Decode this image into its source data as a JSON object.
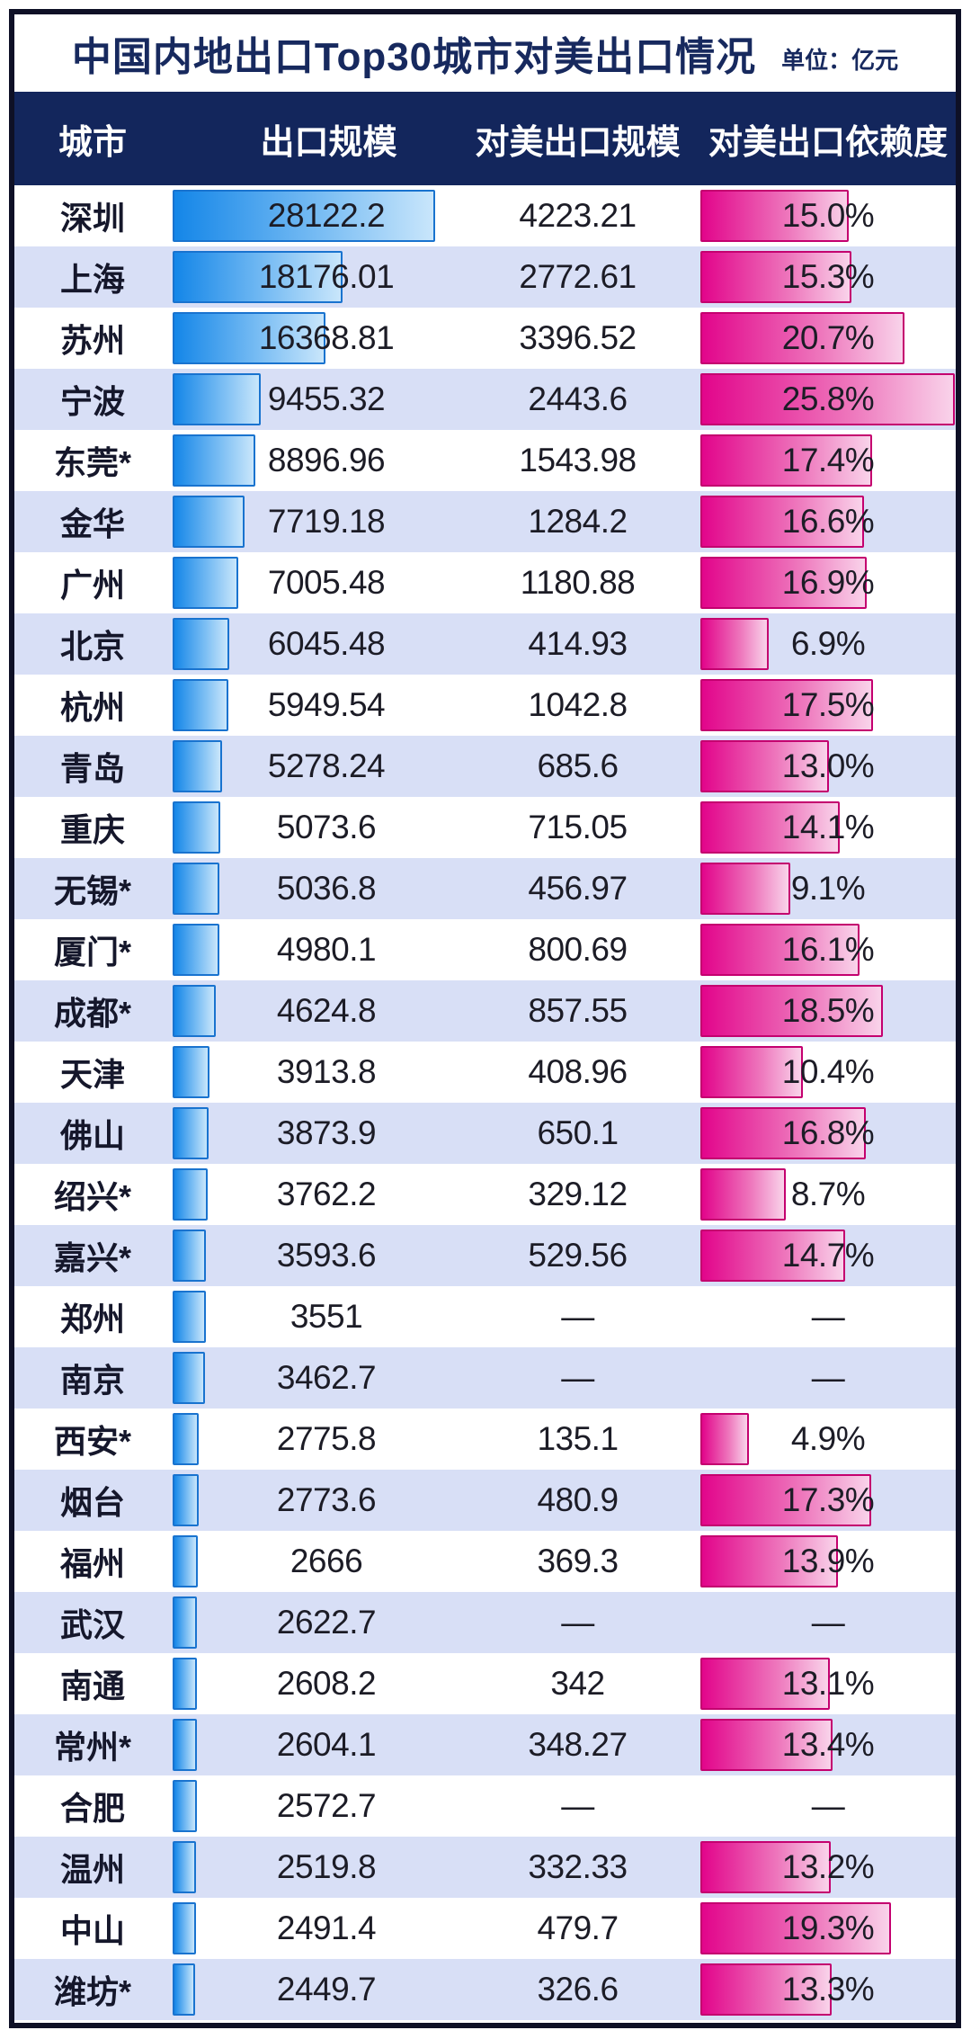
{
  "title": {
    "text": "中国内地出口Top30城市对美出口情况",
    "unit": "单位：亿元"
  },
  "table": {
    "headers": [
      "城市",
      "出口规模",
      "对美出口规模",
      "对美出口依赖度"
    ],
    "na_symbol": "—",
    "rows": [
      {
        "city": "深圳",
        "export": "28122.2",
        "export_value": 28122.2,
        "us_export": "4223.21",
        "dependency": "15.0%",
        "dependency_value": 15.0
      },
      {
        "city": "上海",
        "export": "18176.01",
        "export_value": 18176.01,
        "us_export": "2772.61",
        "dependency": "15.3%",
        "dependency_value": 15.3
      },
      {
        "city": "苏州",
        "export": "16368.81",
        "export_value": 16368.81,
        "us_export": "3396.52",
        "dependency": "20.7%",
        "dependency_value": 20.7
      },
      {
        "city": "宁波",
        "export": "9455.32",
        "export_value": 9455.32,
        "us_export": "2443.6",
        "dependency": "25.8%",
        "dependency_value": 25.8
      },
      {
        "city": "东莞*",
        "export": "8896.96",
        "export_value": 8896.96,
        "us_export": "1543.98",
        "dependency": "17.4%",
        "dependency_value": 17.4
      },
      {
        "city": "金华",
        "export": "7719.18",
        "export_value": 7719.18,
        "us_export": "1284.2",
        "dependency": "16.6%",
        "dependency_value": 16.6
      },
      {
        "city": "广州",
        "export": "7005.48",
        "export_value": 7005.48,
        "us_export": "1180.88",
        "dependency": "16.9%",
        "dependency_value": 16.9
      },
      {
        "city": "北京",
        "export": "6045.48",
        "export_value": 6045.48,
        "us_export": "414.93",
        "dependency": "6.9%",
        "dependency_value": 6.9
      },
      {
        "city": "杭州",
        "export": "5949.54",
        "export_value": 5949.54,
        "us_export": "1042.8",
        "dependency": "17.5%",
        "dependency_value": 17.5
      },
      {
        "city": "青岛",
        "export": "5278.24",
        "export_value": 5278.24,
        "us_export": "685.6",
        "dependency": "13.0%",
        "dependency_value": 13.0
      },
      {
        "city": "重庆",
        "export": "5073.6",
        "export_value": 5073.6,
        "us_export": "715.05",
        "dependency": "14.1%",
        "dependency_value": 14.1
      },
      {
        "city": "无锡*",
        "export": "5036.8",
        "export_value": 5036.8,
        "us_export": "456.97",
        "dependency": "9.1%",
        "dependency_value": 9.1
      },
      {
        "city": "厦门*",
        "export": "4980.1",
        "export_value": 4980.1,
        "us_export": "800.69",
        "dependency": "16.1%",
        "dependency_value": 16.1
      },
      {
        "city": "成都*",
        "export": "4624.8",
        "export_value": 4624.8,
        "us_export": "857.55",
        "dependency": "18.5%",
        "dependency_value": 18.5
      },
      {
        "city": "天津",
        "export": "3913.8",
        "export_value": 3913.8,
        "us_export": "408.96",
        "dependency": "10.4%",
        "dependency_value": 10.4
      },
      {
        "city": "佛山",
        "export": "3873.9",
        "export_value": 3873.9,
        "us_export": "650.1",
        "dependency": "16.8%",
        "dependency_value": 16.8
      },
      {
        "city": "绍兴*",
        "export": "3762.2",
        "export_value": 3762.2,
        "us_export": "329.12",
        "dependency": "8.7%",
        "dependency_value": 8.7
      },
      {
        "city": "嘉兴*",
        "export": "3593.6",
        "export_value": 3593.6,
        "us_export": "529.56",
        "dependency": "14.7%",
        "dependency_value": 14.7
      },
      {
        "city": "郑州",
        "export": "3551",
        "export_value": 3551,
        "us_export": "—",
        "dependency": "—",
        "dependency_value": null
      },
      {
        "city": "南京",
        "export": "3462.7",
        "export_value": 3462.7,
        "us_export": "—",
        "dependency": "—",
        "dependency_value": null
      },
      {
        "city": "西安*",
        "export": "2775.8",
        "export_value": 2775.8,
        "us_export": "135.1",
        "dependency": "4.9%",
        "dependency_value": 4.9
      },
      {
        "city": "烟台",
        "export": "2773.6",
        "export_value": 2773.6,
        "us_export": "480.9",
        "dependency": "17.3%",
        "dependency_value": 17.3
      },
      {
        "city": "福州",
        "export": "2666",
        "export_value": 2666,
        "us_export": "369.3",
        "dependency": "13.9%",
        "dependency_value": 13.9
      },
      {
        "city": "武汉",
        "export": "2622.7",
        "export_value": 2622.7,
        "us_export": "—",
        "dependency": "—",
        "dependency_value": null
      },
      {
        "city": "南通",
        "export": "2608.2",
        "export_value": 2608.2,
        "us_export": "342",
        "dependency": "13.1%",
        "dependency_value": 13.1
      },
      {
        "city": "常州*",
        "export": "2604.1",
        "export_value": 2604.1,
        "us_export": "348.27",
        "dependency": "13.4%",
        "dependency_value": 13.4
      },
      {
        "city": "合肥",
        "export": "2572.7",
        "export_value": 2572.7,
        "us_export": "—",
        "dependency": "—",
        "dependency_value": null
      },
      {
        "city": "温州",
        "export": "2519.8",
        "export_value": 2519.8,
        "us_export": "332.33",
        "dependency": "13.2%",
        "dependency_value": 13.2
      },
      {
        "city": "中山",
        "export": "2491.4",
        "export_value": 2491.4,
        "us_export": "479.7",
        "dependency": "19.3%",
        "dependency_value": 19.3
      },
      {
        "city": "潍坊*",
        "export": "2449.7",
        "export_value": 2449.7,
        "us_export": "326.6",
        "dependency": "13.3%",
        "dependency_value": 13.3
      }
    ]
  },
  "colors": {
    "frame_border": "#0e1026",
    "header_bg": "#13265c",
    "title_text": "#17295e",
    "row_alt_bg": "#d8dff6",
    "blue_bar_start": "#1486e8",
    "blue_bar_end": "#c9e6fb",
    "blue_bar_border": "#1973cf",
    "pink_bar_start": "#e2058b",
    "pink_bar_end": "#f9d3ea",
    "pink_bar_border": "#c4006f"
  },
  "chart_data": {
    "type": "bar",
    "title": "中国内地出口Top30城市对美出口情况",
    "unit": "亿元",
    "categories": [
      "深圳",
      "上海",
      "苏州",
      "宁波",
      "东莞*",
      "金华",
      "广州",
      "北京",
      "杭州",
      "青岛",
      "重庆",
      "无锡*",
      "厦门*",
      "成都*",
      "天津",
      "佛山",
      "绍兴*",
      "嘉兴*",
      "郑州",
      "南京",
      "西安*",
      "烟台",
      "福州",
      "武汉",
      "南通",
      "常州*",
      "合肥",
      "温州",
      "中山",
      "潍坊*"
    ],
    "series": [
      {
        "name": "出口规模",
        "values": [
          28122.2,
          18176.01,
          16368.81,
          9455.32,
          8896.96,
          7719.18,
          7005.48,
          6045.48,
          5949.54,
          5278.24,
          5073.6,
          5036.8,
          4980.1,
          4624.8,
          3913.8,
          3873.9,
          3762.2,
          3593.6,
          3551,
          3462.7,
          2775.8,
          2773.6,
          2666,
          2622.7,
          2608.2,
          2604.1,
          2572.7,
          2519.8,
          2491.4,
          2449.7
        ]
      },
      {
        "name": "对美出口规模",
        "values": [
          4223.21,
          2772.61,
          3396.52,
          2443.6,
          1543.98,
          1284.2,
          1180.88,
          414.93,
          1042.8,
          685.6,
          715.05,
          456.97,
          800.69,
          857.55,
          408.96,
          650.1,
          329.12,
          529.56,
          null,
          null,
          135.1,
          480.9,
          369.3,
          null,
          342,
          348.27,
          null,
          332.33,
          479.7,
          326.6
        ]
      },
      {
        "name": "对美出口依赖度(%)",
        "values": [
          15.0,
          15.3,
          20.7,
          25.8,
          17.4,
          16.6,
          16.9,
          6.9,
          17.5,
          13.0,
          14.1,
          9.1,
          16.1,
          18.5,
          10.4,
          16.8,
          8.7,
          14.7,
          null,
          null,
          4.9,
          17.3,
          13.9,
          null,
          13.1,
          13.4,
          null,
          13.2,
          19.3,
          13.3
        ]
      }
    ],
    "layout": {
      "bars_horizontal": true,
      "grid": false,
      "legend": "none",
      "bar_scale_note": "bar widths proportional to value; max 出口规模=28122.2, max 依赖度=25.8%"
    }
  }
}
